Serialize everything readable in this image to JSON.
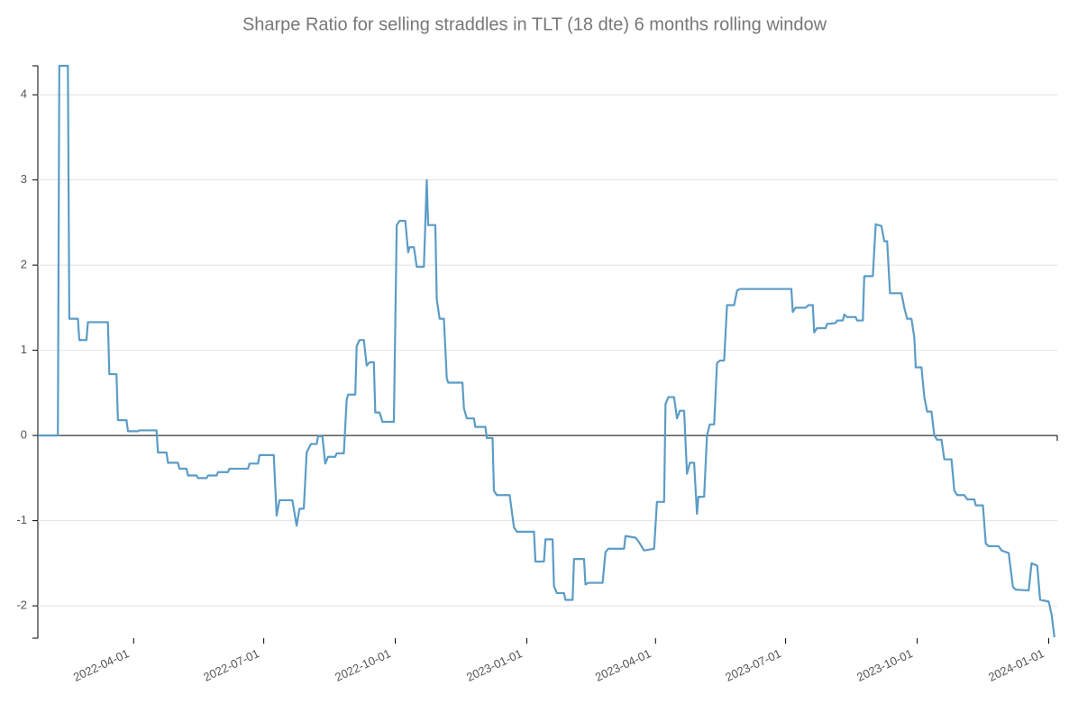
{
  "chart_data": {
    "type": "line",
    "title": "Sharpe Ratio for selling straddles in TLT (18 dte) 6 months rolling window",
    "xlim": [
      "2022-01-24",
      "2024-01-07"
    ],
    "xticks": [
      "2022-04-01",
      "2022-07-01",
      "2022-10-01",
      "2023-01-01",
      "2023-04-01",
      "2023-07-01",
      "2023-10-01",
      "2024-01-01"
    ],
    "ylim": [
      -2.38,
      4.34
    ],
    "yticks": [
      -2,
      -1,
      0,
      1,
      2,
      3,
      4
    ],
    "grid": true,
    "x": [
      "2022-01-24",
      "2022-02-07",
      "2022-02-08",
      "2022-02-14",
      "2022-02-15",
      "2022-02-21",
      "2022-02-22",
      "2022-02-27",
      "2022-02-28",
      "2022-03-14",
      "2022-03-15",
      "2022-03-20",
      "2022-03-21",
      "2022-03-27",
      "2022-03-28",
      "2022-04-04",
      "2022-04-05",
      "2022-04-17",
      "2022-04-18",
      "2022-04-24",
      "2022-04-25",
      "2022-05-02",
      "2022-05-03",
      "2022-05-08",
      "2022-05-09",
      "2022-05-15",
      "2022-05-16",
      "2022-05-22",
      "2022-05-23",
      "2022-05-29",
      "2022-05-30",
      "2022-06-06",
      "2022-06-07",
      "2022-06-20",
      "2022-06-21",
      "2022-06-27",
      "2022-06-28",
      "2022-07-08",
      "2022-07-10",
      "2022-07-12",
      "2022-07-21",
      "2022-07-24",
      "2022-07-26",
      "2022-07-29",
      "2022-07-31",
      "2022-08-03",
      "2022-08-07",
      "2022-08-08",
      "2022-08-11",
      "2022-08-13",
      "2022-08-15",
      "2022-08-20",
      "2022-08-21",
      "2022-08-26",
      "2022-08-28",
      "2022-08-29",
      "2022-09-03",
      "2022-09-04",
      "2022-09-06",
      "2022-09-09",
      "2022-09-11",
      "2022-09-13",
      "2022-09-16",
      "2022-09-17",
      "2022-09-20",
      "2022-09-22",
      "2022-09-30",
      "2022-10-02",
      "2022-10-04",
      "2022-10-08",
      "2022-10-10",
      "2022-10-11",
      "2022-10-14",
      "2022-10-16",
      "2022-10-21",
      "2022-10-23",
      "2022-10-24",
      "2022-10-29",
      "2022-10-30",
      "2022-11-01",
      "2022-11-04",
      "2022-11-06",
      "2022-11-07",
      "2022-11-17",
      "2022-11-18",
      "2022-11-20",
      "2022-11-25",
      "2022-11-26",
      "2022-12-03",
      "2022-12-04",
      "2022-12-08",
      "2022-12-09",
      "2022-12-11",
      "2022-12-20",
      "2022-12-23",
      "2022-12-25",
      "2023-01-06",
      "2023-01-07",
      "2023-01-13",
      "2023-01-14",
      "2023-01-19",
      "2023-01-20",
      "2023-01-22",
      "2023-01-27",
      "2023-01-28",
      "2023-02-02",
      "2023-02-03",
      "2023-02-10",
      "2023-02-11",
      "2023-02-13",
      "2023-02-23",
      "2023-02-25",
      "2023-02-27",
      "2023-03-10",
      "2023-03-11",
      "2023-03-18",
      "2023-03-20",
      "2023-03-24",
      "2023-03-31",
      "2023-04-02",
      "2023-04-07",
      "2023-04-08",
      "2023-04-10",
      "2023-04-14",
      "2023-04-16",
      "2023-04-18",
      "2023-04-21",
      "2023-04-23",
      "2023-04-25",
      "2023-04-28",
      "2023-04-30",
      "2023-05-01",
      "2023-05-05",
      "2023-05-07",
      "2023-05-09",
      "2023-05-12",
      "2023-05-14",
      "2023-05-16",
      "2023-05-19",
      "2023-05-21",
      "2023-05-26",
      "2023-05-28",
      "2023-05-30",
      "2023-07-05",
      "2023-07-06",
      "2023-07-08",
      "2023-07-15",
      "2023-07-17",
      "2023-07-20",
      "2023-07-21",
      "2023-07-23",
      "2023-07-29",
      "2023-07-30",
      "2023-08-05",
      "2023-08-06",
      "2023-08-10",
      "2023-08-11",
      "2023-08-13",
      "2023-08-19",
      "2023-08-20",
      "2023-08-24",
      "2023-08-25",
      "2023-08-31",
      "2023-09-02",
      "2023-09-06",
      "2023-09-08",
      "2023-09-10",
      "2023-09-12",
      "2023-09-20",
      "2023-09-22",
      "2023-09-24",
      "2023-09-27",
      "2023-09-29",
      "2023-09-30",
      "2023-10-04",
      "2023-10-06",
      "2023-10-08",
      "2023-10-11",
      "2023-10-13",
      "2023-10-15",
      "2023-10-18",
      "2023-10-20",
      "2023-10-25",
      "2023-10-27",
      "2023-10-29",
      "2023-11-03",
      "2023-11-05",
      "2023-11-10",
      "2023-11-11",
      "2023-11-16",
      "2023-11-18",
      "2023-11-20",
      "2023-11-27",
      "2023-11-29",
      "2023-12-04",
      "2023-12-07",
      "2023-12-09",
      "2023-12-18",
      "2023-12-20",
      "2023-12-24",
      "2023-12-26",
      "2024-01-01",
      "2024-01-03",
      "2024-01-05"
    ],
    "series": [
      {
        "color": "#5b9cc6",
        "values": [
          0,
          0,
          4.34,
          4.34,
          1.37,
          1.37,
          1.12,
          1.12,
          1.33,
          1.33,
          0.72,
          0.72,
          0.18,
          0.18,
          0.05,
          0.05,
          0.06,
          0.06,
          -0.2,
          -0.2,
          -0.32,
          -0.32,
          -0.39,
          -0.39,
          -0.47,
          -0.47,
          -0.5,
          -0.5,
          -0.47,
          -0.47,
          -0.43,
          -0.43,
          -0.39,
          -0.39,
          -0.33,
          -0.33,
          -0.23,
          -0.23,
          -0.94,
          -0.76,
          -0.76,
          -1.06,
          -0.86,
          -0.86,
          -0.2,
          -0.1,
          -0.1,
          -0.01,
          -0.01,
          -0.33,
          -0.25,
          -0.25,
          -0.21,
          -0.21,
          0.42,
          0.48,
          0.48,
          1.05,
          1.12,
          1.12,
          0.82,
          0.86,
          0.86,
          0.27,
          0.27,
          0.16,
          0.16,
          2.47,
          2.52,
          2.52,
          2.15,
          2.21,
          2.21,
          1.98,
          1.98,
          3.0,
          2.47,
          2.47,
          1.6,
          1.37,
          1.37,
          0.67,
          0.62,
          0.62,
          0.32,
          0.2,
          0.2,
          0.1,
          0.1,
          -0.03,
          -0.03,
          -0.65,
          -0.7,
          -0.7,
          -1.08,
          -1.13,
          -1.13,
          -1.48,
          -1.48,
          -1.22,
          -1.22,
          -1.77,
          -1.85,
          -1.85,
          -1.93,
          -1.93,
          -1.45,
          -1.45,
          -1.75,
          -1.73,
          -1.73,
          -1.37,
          -1.33,
          -1.33,
          -1.18,
          -1.2,
          -1.24,
          -1.35,
          -1.33,
          -0.78,
          -0.78,
          0.37,
          0.45,
          0.45,
          0.2,
          0.29,
          0.29,
          -0.45,
          -0.32,
          -0.32,
          -0.92,
          -0.72,
          -0.72,
          0.0,
          0.13,
          0.13,
          0.85,
          0.88,
          0.88,
          1.53,
          1.53,
          1.7,
          1.72,
          1.72,
          1.45,
          1.5,
          1.5,
          1.53,
          1.53,
          1.21,
          1.26,
          1.26,
          1.31,
          1.32,
          1.35,
          1.35,
          1.42,
          1.39,
          1.39,
          1.35,
          1.35,
          1.87,
          1.87,
          2.48,
          2.46,
          2.28,
          2.28,
          1.67,
          1.67,
          1.5,
          1.37,
          1.37,
          1.15,
          0.8,
          0.8,
          0.45,
          0.28,
          0.28,
          0.0,
          -0.05,
          -0.05,
          -0.28,
          -0.28,
          -0.65,
          -0.7,
          -0.7,
          -0.75,
          -0.75,
          -0.82,
          -0.82,
          -1.27,
          -1.3,
          -1.3,
          -1.35,
          -1.38,
          -1.78,
          -1.81,
          -1.82,
          -1.5,
          -1.53,
          -1.93,
          -1.95,
          -2.1,
          -2.37
        ]
      }
    ]
  }
}
